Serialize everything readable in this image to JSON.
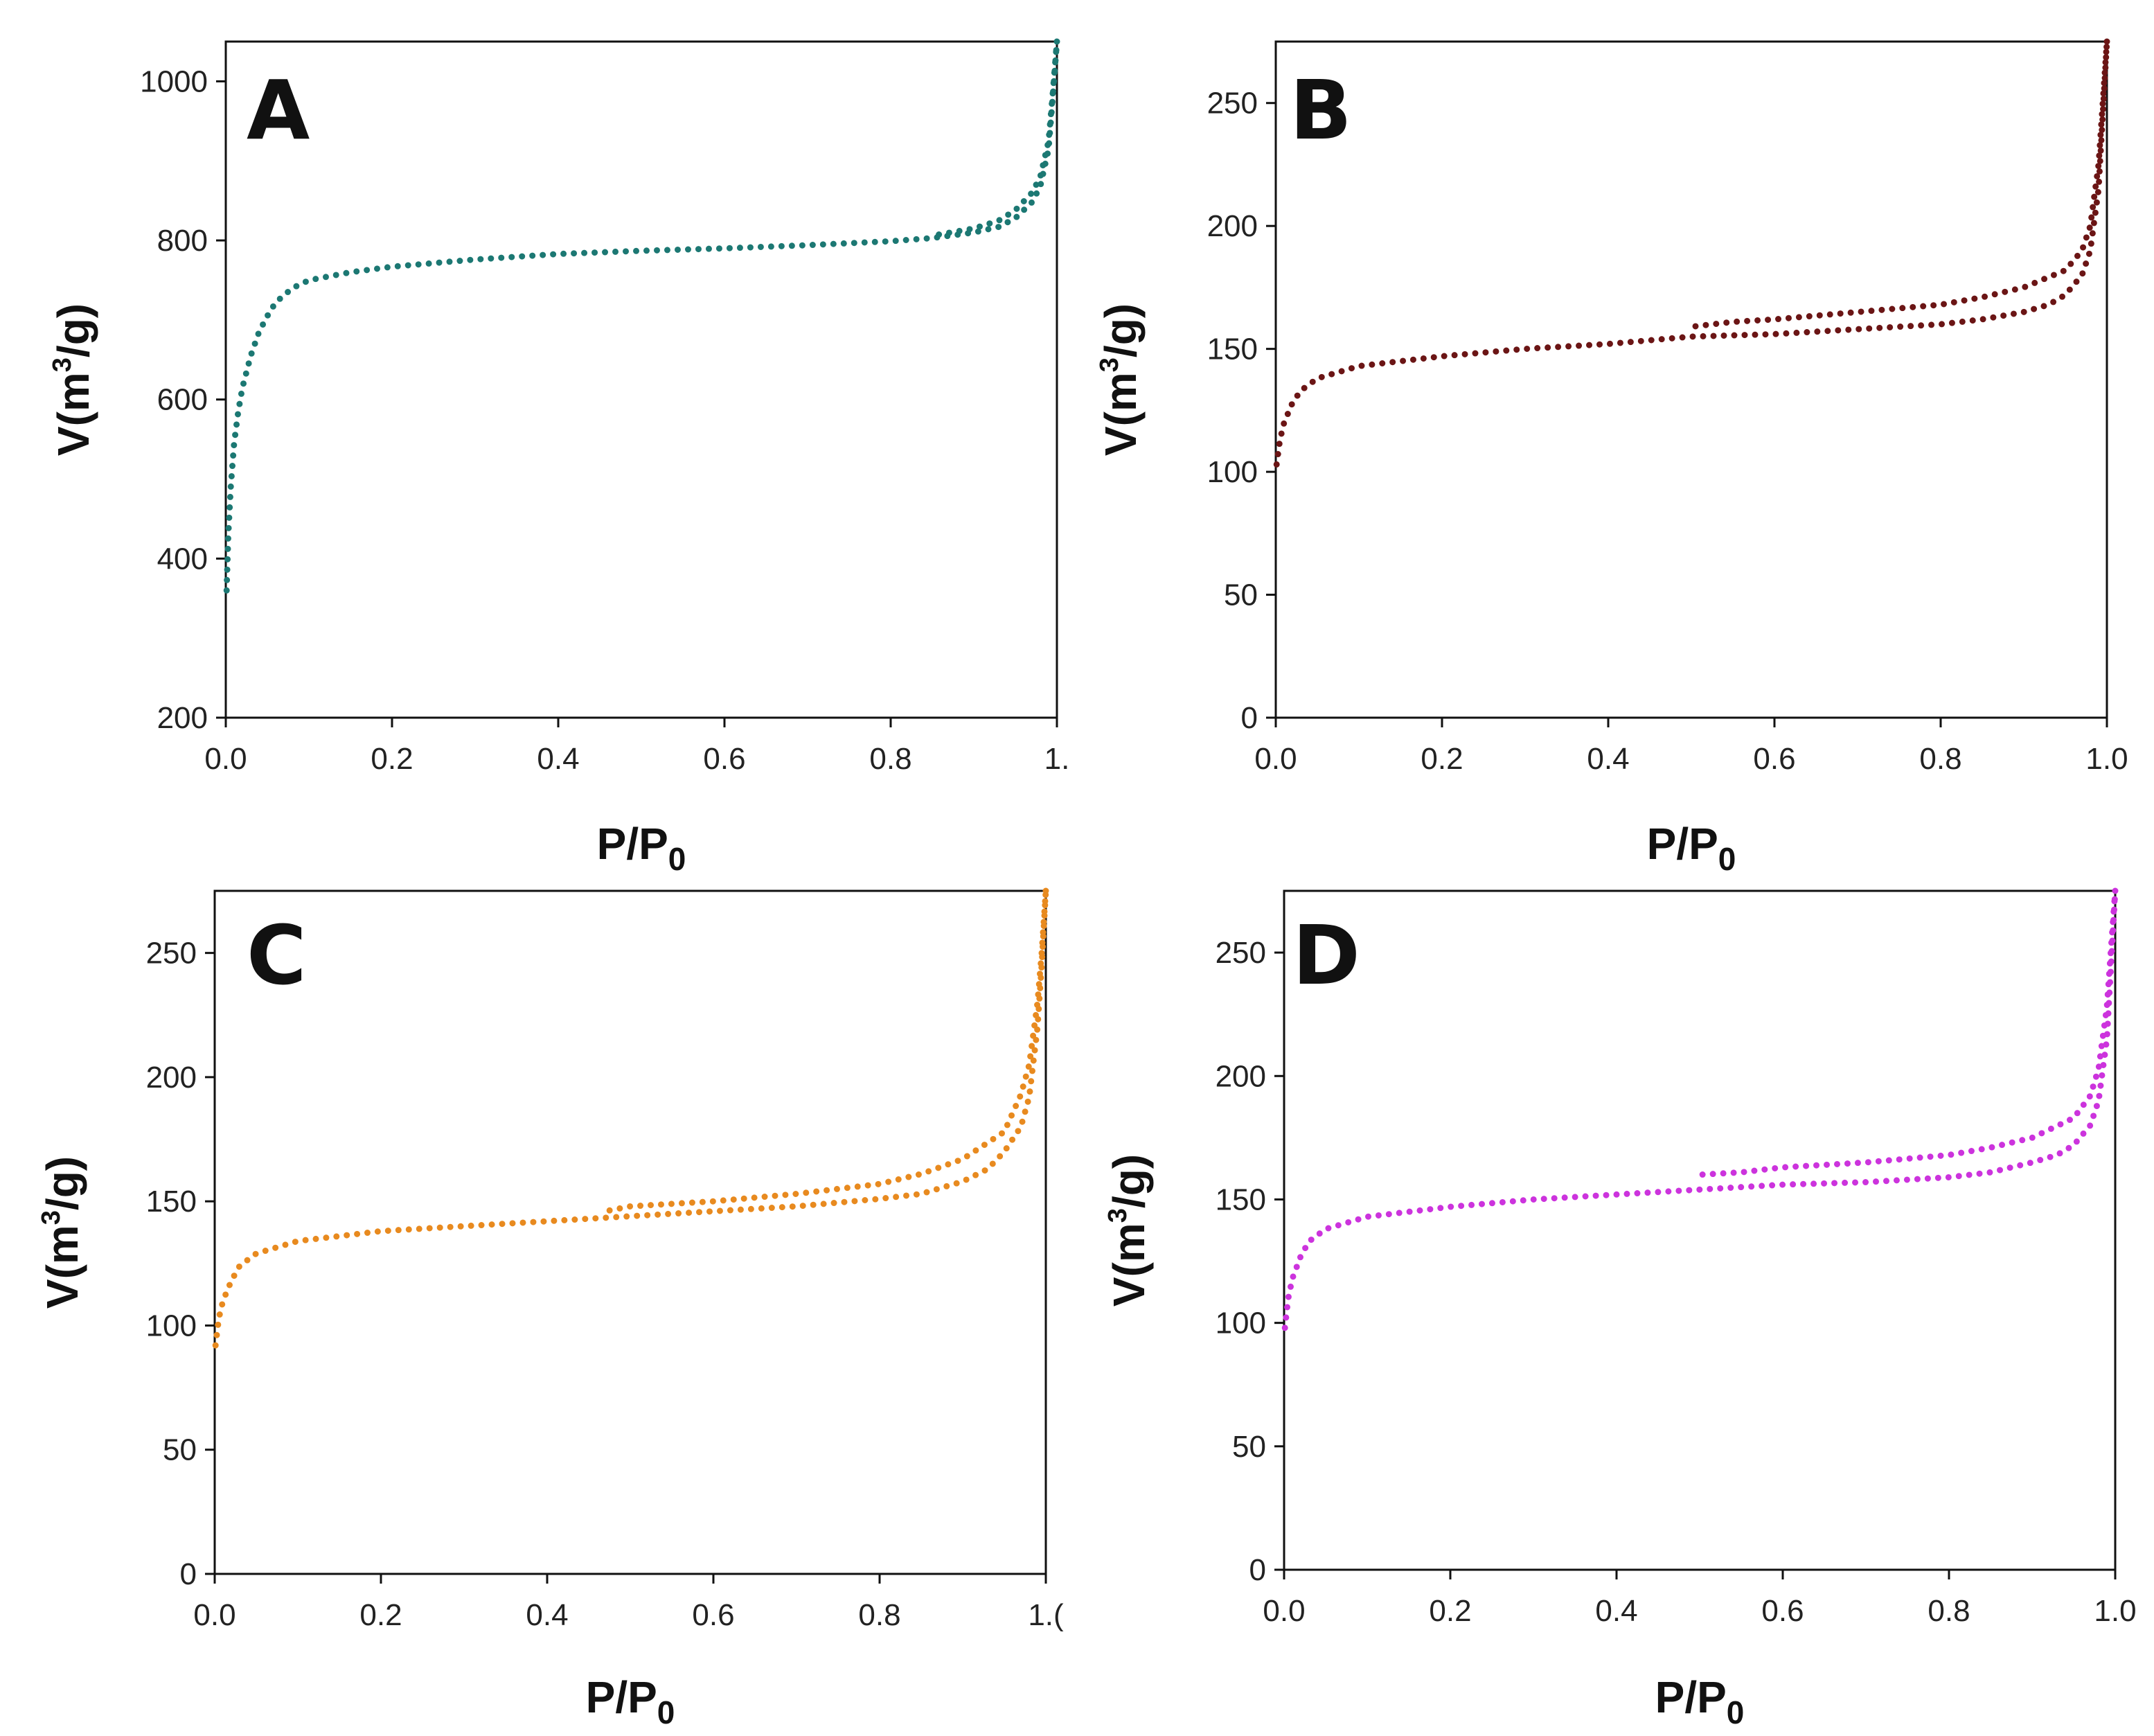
{
  "figure": {
    "panels": [
      "A",
      "B",
      "C",
      "D"
    ]
  },
  "chart_data": [
    {
      "panel": "A",
      "type": "scatter",
      "title": "",
      "xlabel_main": "P/P",
      "xlabel_sub": "0",
      "ylabel_pre": "V(m",
      "ylabel_sup": "3",
      "ylabel_post": "/g)",
      "xlim": [
        0,
        1.0
      ],
      "ylim": [
        200,
        1050
      ],
      "xticks": [
        0.0,
        0.2,
        0.4,
        0.6,
        0.8,
        1.0
      ],
      "xtick_labels": [
        "0.0",
        "0.2",
        "0.4",
        "0.6",
        "0.8",
        "1."
      ],
      "yticks": [
        200,
        400,
        600,
        800,
        1000
      ],
      "ytick_labels": [
        "200",
        "400",
        "600",
        "800",
        "1000"
      ],
      "color": "#1c7873",
      "grid": false,
      "series": [
        {
          "name": "adsorption",
          "points": [
            [
              0.001,
              360
            ],
            [
              0.003,
              430
            ],
            [
              0.006,
              490
            ],
            [
              0.01,
              545
            ],
            [
              0.015,
              585
            ],
            [
              0.02,
              615
            ],
            [
              0.03,
              655
            ],
            [
              0.04,
              685
            ],
            [
              0.05,
              705
            ],
            [
              0.06,
              722
            ],
            [
              0.08,
              740
            ],
            [
              0.1,
              750
            ],
            [
              0.15,
              760
            ],
            [
              0.2,
              767
            ],
            [
              0.3,
              776
            ],
            [
              0.4,
              783
            ],
            [
              0.5,
              787
            ],
            [
              0.6,
              790
            ],
            [
              0.7,
              794
            ],
            [
              0.8,
              799
            ],
            [
              0.85,
              803
            ],
            [
              0.9,
              810
            ],
            [
              0.93,
              817
            ],
            [
              0.95,
              828
            ],
            [
              0.97,
              848
            ],
            [
              0.98,
              868
            ],
            [
              0.99,
              915
            ],
            [
              0.995,
              980
            ],
            [
              1.0,
              1050
            ]
          ]
        },
        {
          "name": "desorption",
          "points": [
            [
              1.0,
              1050
            ],
            [
              0.995,
              985
            ],
            [
              0.99,
              925
            ],
            [
              0.98,
              880
            ],
            [
              0.97,
              860
            ],
            [
              0.95,
              838
            ],
            [
              0.93,
              825
            ],
            [
              0.9,
              815
            ],
            [
              0.85,
              806
            ]
          ]
        }
      ]
    },
    {
      "panel": "B",
      "type": "scatter",
      "title": "",
      "xlabel_main": "P/P",
      "xlabel_sub": "0",
      "ylabel_pre": "V(m",
      "ylabel_sup": "3",
      "ylabel_post": "/g)",
      "xlim": [
        0,
        1.0
      ],
      "ylim": [
        0,
        275
      ],
      "xticks": [
        0.0,
        0.2,
        0.4,
        0.6,
        0.8,
        1.0
      ],
      "xtick_labels": [
        "0.0",
        "0.2",
        "0.4",
        "0.6",
        "0.8",
        "1.0"
      ],
      "yticks": [
        0,
        50,
        100,
        150,
        200,
        250
      ],
      "ytick_labels": [
        "0",
        "50",
        "100",
        "150",
        "200",
        "250"
      ],
      "color": "#6b1515",
      "grid": false,
      "series": [
        {
          "name": "adsorption",
          "points": [
            [
              0.001,
              103
            ],
            [
              0.005,
              113
            ],
            [
              0.01,
              120
            ],
            [
              0.02,
              128
            ],
            [
              0.03,
              133
            ],
            [
              0.05,
              138
            ],
            [
              0.08,
              141
            ],
            [
              0.1,
              143
            ],
            [
              0.15,
              145
            ],
            [
              0.2,
              147
            ],
            [
              0.3,
              150
            ],
            [
              0.4,
              152
            ],
            [
              0.5,
              155
            ],
            [
              0.6,
              156
            ],
            [
              0.7,
              158
            ],
            [
              0.8,
              160
            ],
            [
              0.85,
              162
            ],
            [
              0.9,
              165
            ],
            [
              0.93,
              168
            ],
            [
              0.95,
              172
            ],
            [
              0.97,
              180
            ],
            [
              0.98,
              190
            ],
            [
              0.99,
              215
            ],
            [
              0.995,
              245
            ],
            [
              1.0,
              275
            ]
          ]
        },
        {
          "name": "desorption",
          "points": [
            [
              1.0,
              275
            ],
            [
              0.995,
              250
            ],
            [
              0.99,
              225
            ],
            [
              0.98,
              200
            ],
            [
              0.97,
              190
            ],
            [
              0.95,
              182
            ],
            [
              0.9,
              175
            ],
            [
              0.85,
              171
            ],
            [
              0.8,
              168
            ],
            [
              0.7,
              165
            ],
            [
              0.6,
              162
            ],
            [
              0.55,
              161
            ],
            [
              0.5,
              159
            ]
          ]
        }
      ]
    },
    {
      "panel": "C",
      "type": "scatter",
      "title": "",
      "xlabel_main": "P/P",
      "xlabel_sub": "0",
      "ylabel_pre": "V(m",
      "ylabel_sup": "3",
      "ylabel_post": "/g)",
      "xlim": [
        0,
        1.0
      ],
      "ylim": [
        0,
        275
      ],
      "xticks": [
        0.0,
        0.2,
        0.4,
        0.6,
        0.8,
        1.0
      ],
      "xtick_labels": [
        "0.0",
        "0.2",
        "0.4",
        "0.6",
        "0.8",
        "1.("
      ],
      "yticks": [
        0,
        50,
        100,
        150,
        200,
        250
      ],
      "ytick_labels": [
        "0",
        "50",
        "100",
        "150",
        "200",
        "250"
      ],
      "color": "#e88a1f",
      "grid": false,
      "series": [
        {
          "name": "adsorption",
          "points": [
            [
              0.001,
              92
            ],
            [
              0.005,
              103
            ],
            [
              0.01,
              110
            ],
            [
              0.02,
              118
            ],
            [
              0.03,
              124
            ],
            [
              0.05,
              129
            ],
            [
              0.08,
              132
            ],
            [
              0.1,
              134
            ],
            [
              0.15,
              136
            ],
            [
              0.2,
              138
            ],
            [
              0.3,
              140
            ],
            [
              0.4,
              142
            ],
            [
              0.5,
              144
            ],
            [
              0.6,
              146
            ],
            [
              0.7,
              148
            ],
            [
              0.8,
              151
            ],
            [
              0.85,
              153
            ],
            [
              0.9,
              158
            ],
            [
              0.93,
              163
            ],
            [
              0.95,
              170
            ],
            [
              0.97,
              180
            ],
            [
              0.98,
              192
            ],
            [
              0.99,
              220
            ],
            [
              0.995,
              245
            ],
            [
              1.0,
              275
            ]
          ]
        },
        {
          "name": "desorption",
          "points": [
            [
              1.0,
              275
            ],
            [
              0.995,
              250
            ],
            [
              0.99,
              230
            ],
            [
              0.98,
              205
            ],
            [
              0.97,
              193
            ],
            [
              0.95,
              178
            ],
            [
              0.9,
              167
            ],
            [
              0.85,
              161
            ],
            [
              0.8,
              157
            ],
            [
              0.7,
              153
            ],
            [
              0.6,
              150
            ],
            [
              0.5,
              148
            ],
            [
              0.47,
              146
            ]
          ]
        }
      ]
    },
    {
      "panel": "D",
      "type": "scatter",
      "title": "",
      "xlabel_main": "P/P",
      "xlabel_sub": "0",
      "ylabel_pre": "V(m",
      "ylabel_sup": "3",
      "ylabel_post": "/g)",
      "xlim": [
        0,
        1.0
      ],
      "ylim": [
        0,
        275
      ],
      "xticks": [
        0.0,
        0.2,
        0.4,
        0.6,
        0.8,
        1.0
      ],
      "xtick_labels": [
        "0.0",
        "0.2",
        "0.4",
        "0.6",
        "0.8",
        "1.0"
      ],
      "yticks": [
        0,
        50,
        100,
        150,
        200,
        250
      ],
      "ytick_labels": [
        "0",
        "50",
        "100",
        "150",
        "200",
        "250"
      ],
      "color": "#cc33dd",
      "grid": false,
      "series": [
        {
          "name": "adsorption",
          "points": [
            [
              0.001,
              98
            ],
            [
              0.005,
              110
            ],
            [
              0.01,
              118
            ],
            [
              0.02,
              127
            ],
            [
              0.03,
              133
            ],
            [
              0.05,
              138
            ],
            [
              0.08,
              141
            ],
            [
              0.1,
              143
            ],
            [
              0.15,
              145
            ],
            [
              0.2,
              147
            ],
            [
              0.3,
              150
            ],
            [
              0.4,
              152
            ],
            [
              0.5,
              154
            ],
            [
              0.6,
              156
            ],
            [
              0.7,
              157
            ],
            [
              0.8,
              159
            ],
            [
              0.85,
              161
            ],
            [
              0.9,
              165
            ],
            [
              0.93,
              168
            ],
            [
              0.95,
              172
            ],
            [
              0.97,
              180
            ],
            [
              0.98,
              190
            ],
            [
              0.99,
              215
            ],
            [
              0.995,
              245
            ],
            [
              1.0,
              275
            ]
          ]
        },
        {
          "name": "desorption",
          "points": [
            [
              1.0,
              275
            ],
            [
              0.995,
              252
            ],
            [
              0.99,
              228
            ],
            [
              0.98,
              203
            ],
            [
              0.97,
              192
            ],
            [
              0.95,
              183
            ],
            [
              0.9,
              175
            ],
            [
              0.85,
              171
            ],
            [
              0.8,
              168
            ],
            [
              0.7,
              165
            ],
            [
              0.6,
              163
            ],
            [
              0.55,
              161
            ],
            [
              0.5,
              160
            ]
          ]
        }
      ]
    }
  ]
}
